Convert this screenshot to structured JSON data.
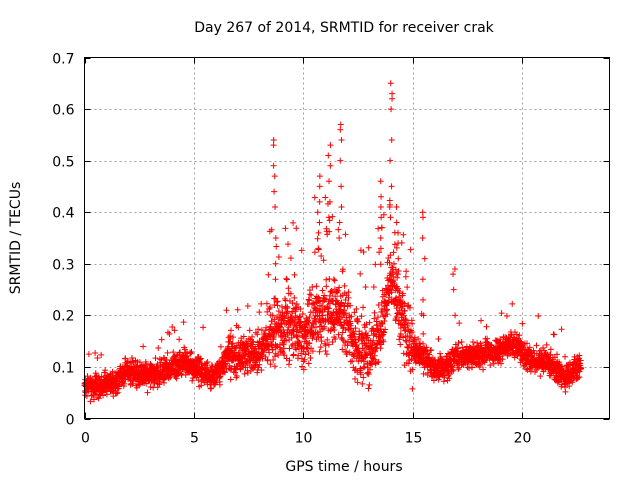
{
  "chart_data": {
    "type": "scatter",
    "title": "Day 267 of 2014, SRMTID for receiver crak",
    "xlabel": "GPS time / hours",
    "ylabel": "SRMTID / TECUs",
    "xlim": [
      0,
      24
    ],
    "ylim": [
      0,
      0.7
    ],
    "x_ticks": [
      0,
      5,
      10,
      15,
      20
    ],
    "x_tick_labels": [
      "0",
      "5",
      "10",
      "15",
      "20"
    ],
    "y_ticks": [
      0,
      0.1,
      0.2,
      0.3,
      0.4,
      0.5,
      0.6,
      0.7
    ],
    "y_tick_labels": [
      "0",
      "0.1",
      "0.2",
      "0.3",
      "0.4",
      "0.5",
      "0.6",
      "0.7"
    ],
    "grid": true,
    "marker": "+",
    "color": "#ff0000",
    "series": [
      {
        "name": "SRMTID",
        "profile": [
          [
            0.0,
            0.065
          ],
          [
            0.5,
            0.06
          ],
          [
            1.0,
            0.065
          ],
          [
            1.5,
            0.075
          ],
          [
            2.0,
            0.095
          ],
          [
            2.5,
            0.085
          ],
          [
            3.0,
            0.08
          ],
          [
            3.5,
            0.09
          ],
          [
            4.0,
            0.1
          ],
          [
            4.5,
            0.11
          ],
          [
            5.0,
            0.1
          ],
          [
            5.5,
            0.085
          ],
          [
            6.0,
            0.08
          ],
          [
            6.5,
            0.12
          ],
          [
            7.0,
            0.12
          ],
          [
            7.5,
            0.12
          ],
          [
            8.0,
            0.13
          ],
          [
            8.5,
            0.16
          ],
          [
            9.0,
            0.17
          ],
          [
            9.5,
            0.18
          ],
          [
            10.0,
            0.15
          ],
          [
            10.5,
            0.19
          ],
          [
            11.0,
            0.2
          ],
          [
            11.5,
            0.21
          ],
          [
            12.0,
            0.18
          ],
          [
            12.5,
            0.14
          ],
          [
            13.0,
            0.12
          ],
          [
            13.5,
            0.17
          ],
          [
            14.0,
            0.26
          ],
          [
            14.5,
            0.2
          ],
          [
            15.0,
            0.13
          ],
          [
            15.5,
            0.12
          ],
          [
            16.0,
            0.1
          ],
          [
            16.5,
            0.1
          ],
          [
            17.0,
            0.12
          ],
          [
            17.5,
            0.12
          ],
          [
            18.0,
            0.12
          ],
          [
            18.5,
            0.13
          ],
          [
            19.0,
            0.13
          ],
          [
            19.5,
            0.15
          ],
          [
            20.0,
            0.13
          ],
          [
            20.5,
            0.11
          ],
          [
            21.0,
            0.11
          ],
          [
            21.5,
            0.1
          ],
          [
            22.0,
            0.08
          ],
          [
            22.6,
            0.1
          ]
        ],
        "spikes": [
          {
            "x": 8.7,
            "values": [
              0.54,
              0.53,
              0.49,
              0.47,
              0.44,
              0.41,
              0.35,
              0.3,
              0.27
            ]
          },
          {
            "x": 10.7,
            "values": [
              0.47,
              0.45,
              0.42,
              0.4,
              0.38,
              0.36,
              0.33
            ]
          },
          {
            "x": 11.2,
            "values": [
              0.53,
              0.51,
              0.49,
              0.46,
              0.42,
              0.39
            ]
          },
          {
            "x": 11.7,
            "values": [
              0.57,
              0.56,
              0.54,
              0.5,
              0.45,
              0.41,
              0.38,
              0.35
            ]
          },
          {
            "x": 13.6,
            "values": [
              0.46,
              0.43,
              0.41,
              0.39,
              0.37,
              0.35,
              0.33
            ]
          },
          {
            "x": 14.0,
            "values": [
              0.65,
              0.63,
              0.62,
              0.6,
              0.54,
              0.5,
              0.45,
              0.41,
              0.39
            ]
          },
          {
            "x": 14.3,
            "values": [
              0.41,
              0.38,
              0.36,
              0.34,
              0.31,
              0.28
            ]
          },
          {
            "x": 15.5,
            "values": [
              0.4,
              0.39,
              0.35,
              0.31,
              0.27,
              0.23,
              0.2
            ]
          },
          {
            "x": 16.9,
            "values": [
              0.29,
              0.28,
              0.25,
              0.2
            ]
          }
        ],
        "n_points": 3200,
        "x_range": [
          0.0,
          22.7
        ]
      }
    ]
  }
}
